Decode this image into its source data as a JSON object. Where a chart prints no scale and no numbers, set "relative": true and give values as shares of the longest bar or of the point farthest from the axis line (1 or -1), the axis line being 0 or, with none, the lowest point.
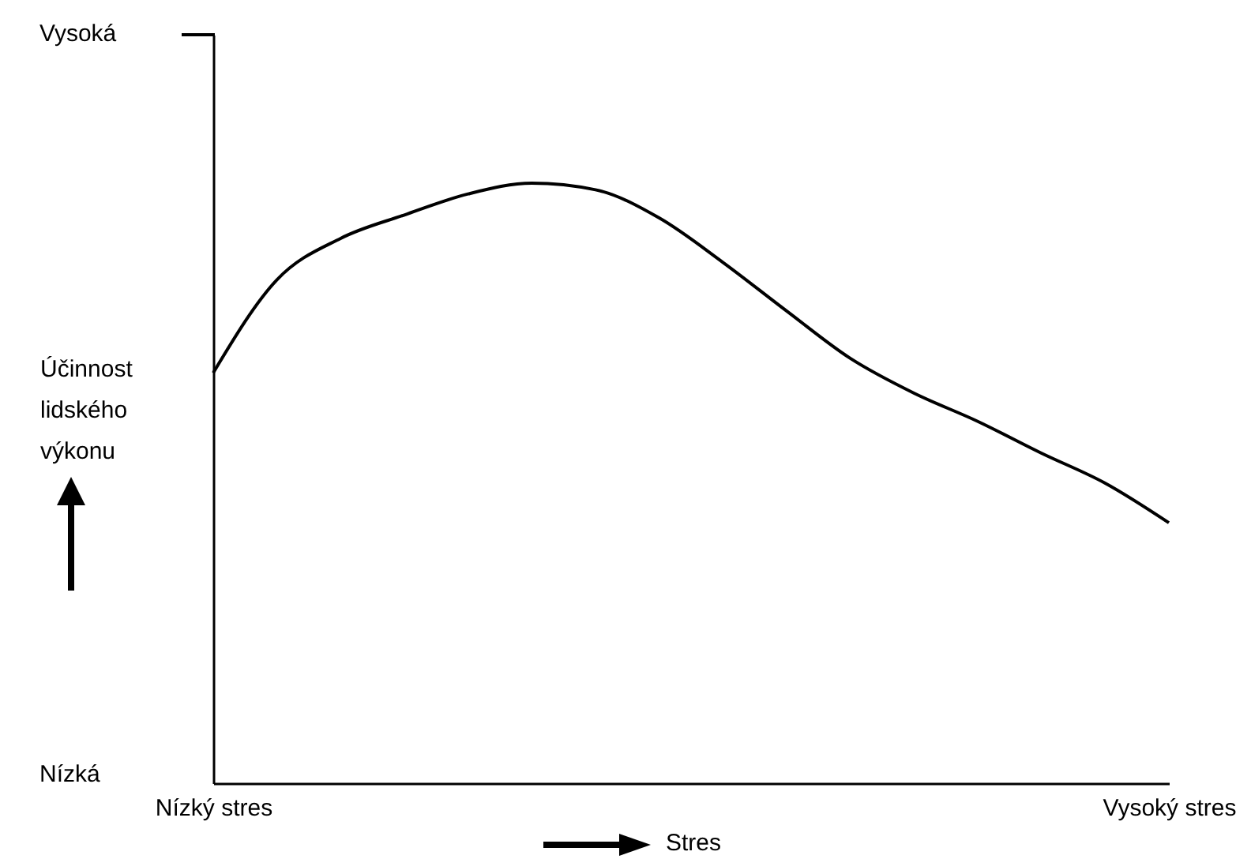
{
  "chart_data": {
    "type": "line",
    "relative": true,
    "xlabel": "Stres",
    "ylabel": "Účinnost lidského výkonu",
    "categories": [
      "Nízký stres",
      null,
      null,
      null,
      null,
      null,
      null,
      null,
      null,
      null,
      null,
      null,
      null,
      null,
      null,
      "Vysoký stres"
    ],
    "series": [
      {
        "color": "#000000",
        "values": [
          0.684,
          0.839,
          0.908,
          0.947,
          0.982,
          1,
          0.989,
          0.942,
          0.868,
          0.787,
          0.708,
          0.65,
          0.603,
          0.55,
          0.5,
          0.434
        ]
      }
    ],
    "annotations": [
      "Vysoká",
      "Nízká"
    ],
    "grid": false,
    "legend": false,
    "marker": "none",
    "line_style": "solid"
  }
}
